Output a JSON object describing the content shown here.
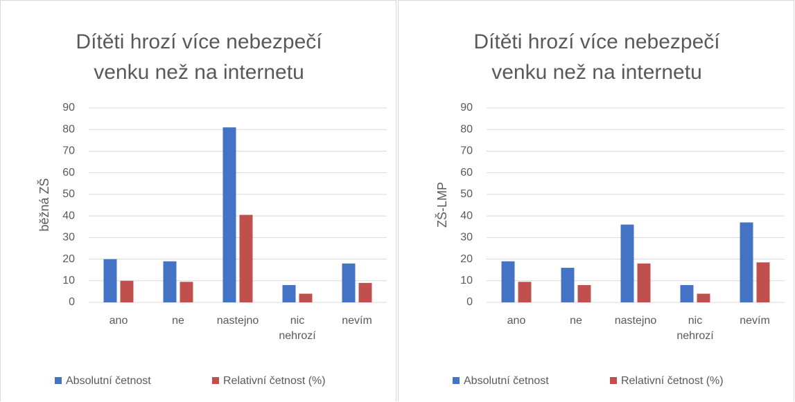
{
  "chart_data": [
    {
      "type": "bar",
      "title": "Dítěti hrozí více nebezpečí venku než na internetu",
      "ylabel": "běžná ZŠ",
      "categories": [
        "ano",
        "ne",
        "nastejno",
        "nic nehrozí",
        "nevím"
      ],
      "series": [
        {
          "name": "Absolutní četnost",
          "color": "#4472c4",
          "values": [
            20,
            19,
            81,
            8,
            18
          ]
        },
        {
          "name": "Relativní četnost (%)",
          "color": "#c0504d",
          "values": [
            10,
            9.5,
            40.5,
            4,
            9
          ]
        }
      ],
      "ylim": [
        0,
        90
      ],
      "yticks": [
        0,
        10,
        20,
        30,
        40,
        50,
        60,
        70,
        80,
        90
      ],
      "grid": true,
      "legend": "bottom"
    },
    {
      "type": "bar",
      "title": "Dítěti hrozí více nebezpečí venku než na internetu",
      "ylabel": "ZŠ-LMP",
      "categories": [
        "ano",
        "ne",
        "nastejno",
        "nic nehrozí",
        "nevím"
      ],
      "series": [
        {
          "name": "Absolutní četnost",
          "color": "#4472c4",
          "values": [
            19,
            16,
            36,
            8,
            37
          ]
        },
        {
          "name": "Relativní četnost (%)",
          "color": "#c0504d",
          "values": [
            9.5,
            8,
            18,
            4,
            18.5
          ]
        }
      ],
      "ylim": [
        0,
        90
      ],
      "yticks": [
        0,
        10,
        20,
        30,
        40,
        50,
        60,
        70,
        80,
        90
      ],
      "grid": true,
      "legend": "bottom"
    }
  ]
}
